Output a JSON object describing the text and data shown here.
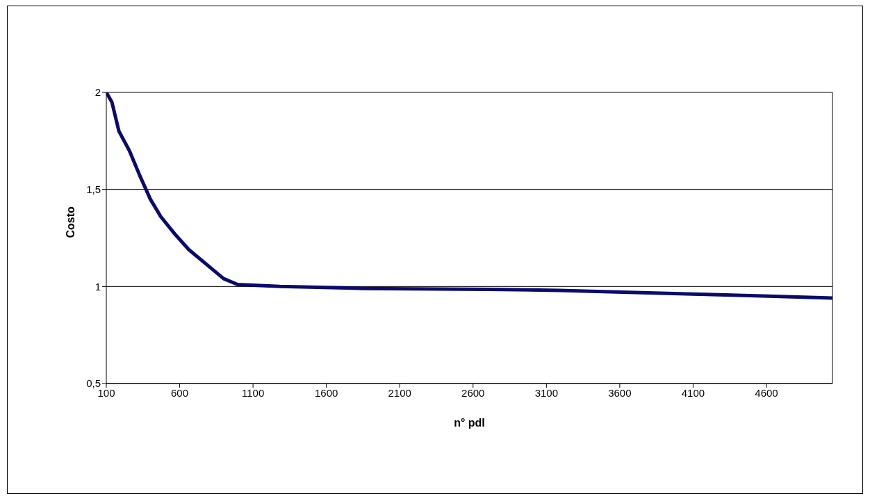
{
  "chart_data": {
    "type": "line",
    "xlabel": "n° pdl",
    "ylabel": "Costo",
    "x": [
      100,
      138,
      186,
      257,
      329,
      400,
      471,
      567,
      662,
      805,
      900,
      995,
      1281,
      1852,
      2710,
      3186,
      3662,
      4138,
      4614,
      5050
    ],
    "series": [
      {
        "color": "#0a0a6e",
        "values": [
          2.0,
          1.95,
          1.8,
          1.7,
          1.57,
          1.45,
          1.36,
          1.27,
          1.19,
          1.1,
          1.04,
          1.01,
          1.0,
          0.99,
          0.985,
          0.98,
          0.97,
          0.96,
          0.95,
          0.94
        ]
      }
    ],
    "xlim": [
      100,
      5050
    ],
    "xticks": [
      100,
      600,
      1100,
      1600,
      2100,
      2600,
      3100,
      3600,
      4100,
      4600
    ],
    "ylim": [
      0.5,
      2
    ],
    "yticks": [
      {
        "value": 0.5,
        "label": "0,5"
      },
      1,
      {
        "value": 1.5,
        "label": "1,5"
      },
      2
    ],
    "grid": "y",
    "legend": false,
    "marker": "none",
    "line_style": "solid"
  }
}
